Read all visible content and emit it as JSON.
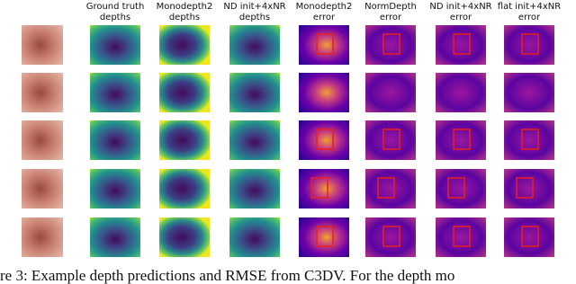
{
  "figure": {
    "columns": [
      {
        "lines": []
      },
      {
        "lines": [
          "Ground truth",
          "depths"
        ]
      },
      {
        "lines": [
          "Monodepth2",
          "depths"
        ]
      },
      {
        "lines": [
          "ND init+4xNR",
          "depths"
        ]
      },
      {
        "lines": [
          "Monodepth2",
          "error"
        ]
      },
      {
        "lines": [
          "NormDepth",
          "error"
        ]
      },
      {
        "lines": [
          "ND init+4xNR",
          "error"
        ]
      },
      {
        "lines": [
          "flat init+4xNR",
          "error"
        ]
      }
    ],
    "caption": "re 3: Example depth predictions and RMSE from C3DV. For the depth mo"
  }
}
